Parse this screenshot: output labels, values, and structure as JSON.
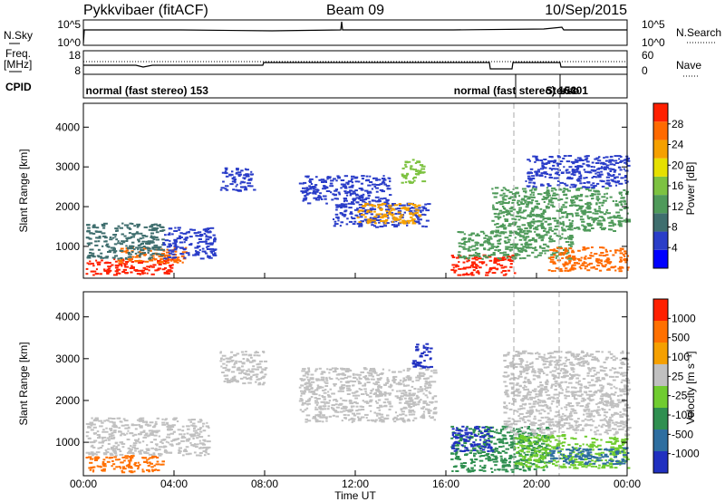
{
  "header": {
    "station": "Pykkvibaer (fitACF)",
    "beam": "Beam 09",
    "date": "10/Sep/2015"
  },
  "top_panels": {
    "nsky_label": "N.Sky",
    "nsearch_label": "N.Search",
    "nsky_ticks": [
      "10^5",
      "10^0"
    ],
    "nsearch_ticks": [
      "10^5",
      "10^0"
    ],
    "freq_label_1": "Freq.",
    "freq_label_2": "[MHz]",
    "freq_ticks": [
      "18",
      "8"
    ],
    "nave_label": "Nave",
    "nave_ticks": [
      "60",
      "0"
    ],
    "cpid_label": "CPID",
    "cpid_entries": [
      {
        "text": "normal (fast stereo) 153",
        "time_h": 0.1
      },
      {
        "text": "normal (fast stereo) 153",
        "time_h": 16.35
      },
      {
        "text": "Stereo",
        "time_h": 20.4
      },
      {
        "text": "-6401",
        "time_h": 21.05
      }
    ]
  },
  "colorbars": {
    "power": {
      "label": "Power [dB]",
      "ticks": [
        "4",
        "8",
        "12",
        "16",
        "20",
        "24",
        "28"
      ],
      "colors": [
        "#0000ff",
        "#2a3dc8",
        "#3f6e6e",
        "#4f9a5a",
        "#7dc241",
        "#e6e000",
        "#f5a000",
        "#ff6a00",
        "#ff2000"
      ]
    },
    "velocity": {
      "label": "Velocity [m s⁻¹]",
      "ticks": [
        "1000",
        "500",
        "100",
        "25",
        "-25",
        "-100",
        "-500",
        "-1000"
      ],
      "colors": [
        "#2030c0",
        "#2e6ea0",
        "#2f8f50",
        "#70cc30",
        "#c0c0c0",
        "#f5a000",
        "#ff7000",
        "#ff2000"
      ]
    }
  },
  "chart_data": [
    {
      "type": "heatmap",
      "name": "power",
      "x_unit": "hours UT",
      "xlim": [
        0,
        24
      ],
      "ylim": [
        200,
        4600
      ],
      "ylabel": "Slant Range [km]",
      "y_ticks": [
        1000,
        2000,
        3000,
        4000
      ],
      "x_ticks": [
        "00:00",
        "04:00",
        "08:00",
        "12:00",
        "16:00",
        "20:00",
        "00:00"
      ],
      "regions": [
        {
          "t0": 0.1,
          "t1": 4.0,
          "r0": 300,
          "r1": 700,
          "color": "#ff2000"
        },
        {
          "t0": 1.5,
          "t1": 4.5,
          "r0": 600,
          "r1": 1000,
          "color": "#ff6a00"
        },
        {
          "t0": 0.1,
          "t1": 3.5,
          "r0": 700,
          "r1": 1600,
          "color": "#3f6e6e"
        },
        {
          "t0": 3.5,
          "t1": 5.8,
          "r0": 700,
          "r1": 1500,
          "color": "#2a3dc8"
        },
        {
          "t0": 6.0,
          "t1": 7.5,
          "r0": 2400,
          "r1": 3000,
          "color": "#2a3dc8"
        },
        {
          "t0": 9.5,
          "t1": 13.5,
          "r0": 2100,
          "r1": 2800,
          "color": "#2a3dc8"
        },
        {
          "t0": 11.0,
          "t1": 15.2,
          "r0": 1500,
          "r1": 2100,
          "color": "#2a3dc8"
        },
        {
          "t0": 12.0,
          "t1": 14.8,
          "r0": 1600,
          "r1": 2100,
          "color": "#f5a000"
        },
        {
          "t0": 14.0,
          "t1": 15.0,
          "r0": 2600,
          "r1": 3200,
          "color": "#7dc241"
        },
        {
          "t0": 16.2,
          "t1": 19.0,
          "r0": 300,
          "r1": 800,
          "color": "#ff2000"
        },
        {
          "t0": 16.5,
          "t1": 21.5,
          "r0": 700,
          "r1": 1400,
          "color": "#4f9a5a"
        },
        {
          "t0": 18.0,
          "t1": 24.0,
          "r0": 1400,
          "r1": 2500,
          "color": "#4f9a5a"
        },
        {
          "t0": 20.5,
          "t1": 24.0,
          "r0": 400,
          "r1": 1000,
          "color": "#ff6a00"
        },
        {
          "t0": 19.5,
          "t1": 24.0,
          "r0": 2500,
          "r1": 3300,
          "color": "#2a3dc8"
        }
      ]
    },
    {
      "type": "heatmap",
      "name": "velocity",
      "x_unit": "hours UT",
      "xlim": [
        0,
        24
      ],
      "ylim": [
        200,
        4600
      ],
      "xlabel": "Time UT",
      "ylabel": "Slant Range [km]",
      "y_ticks": [
        1000,
        2000,
        3000,
        4000
      ],
      "x_ticks": [
        "00:00",
        "04:00",
        "08:00",
        "12:00",
        "16:00",
        "20:00",
        "00:00"
      ],
      "regions": [
        {
          "t0": 0.1,
          "t1": 3.5,
          "r0": 300,
          "r1": 700,
          "color": "#ff7000"
        },
        {
          "t0": 0.1,
          "t1": 5.5,
          "r0": 700,
          "r1": 1600,
          "color": "#c0c0c0"
        },
        {
          "t0": 6.0,
          "t1": 8.0,
          "r0": 2400,
          "r1": 3200,
          "color": "#c0c0c0"
        },
        {
          "t0": 9.5,
          "t1": 15.5,
          "r0": 1500,
          "r1": 2800,
          "color": "#c0c0c0"
        },
        {
          "t0": 16.2,
          "t1": 20.5,
          "r0": 300,
          "r1": 1400,
          "color": "#2f8f50"
        },
        {
          "t0": 16.2,
          "t1": 18.0,
          "r0": 800,
          "r1": 1400,
          "color": "#2030c0"
        },
        {
          "t0": 19.0,
          "t1": 24.0,
          "r0": 400,
          "r1": 1200,
          "color": "#70cc30"
        },
        {
          "t0": 20.5,
          "t1": 24.0,
          "r0": 500,
          "r1": 900,
          "color": "#2e6ea0"
        },
        {
          "t0": 18.5,
          "t1": 24.0,
          "r0": 1200,
          "r1": 3200,
          "color": "#c0c0c0"
        },
        {
          "t0": 14.5,
          "t1": 15.3,
          "r0": 2800,
          "r1": 3400,
          "color": "#2030c0"
        }
      ]
    }
  ]
}
